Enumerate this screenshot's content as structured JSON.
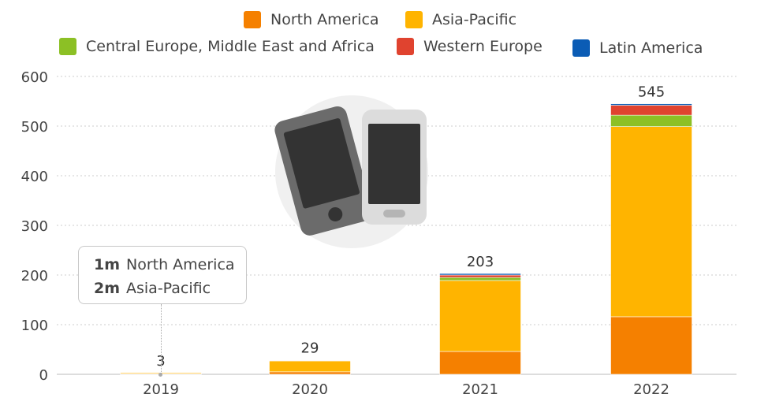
{
  "legend": [
    {
      "label": "North America",
      "color": "#f58000"
    },
    {
      "label": "Asia-Pacific",
      "color": "#ffb400"
    },
    {
      "label": "Central Europe, Middle East and Africa",
      "color": "#8cc025"
    },
    {
      "label": "Western Europe",
      "color": "#e0432f"
    },
    {
      "label": "Latin America",
      "color": "#0b5cb5"
    }
  ],
  "tooltip": {
    "rows": [
      {
        "value": "1m",
        "label": "North America"
      },
      {
        "value": "2m",
        "label": "Asia-Pacific"
      }
    ]
  },
  "illustration_icon": "smartphones-icon",
  "chart_data": {
    "type": "bar",
    "stacked": true,
    "categories": [
      "2019",
      "2020",
      "2021",
      "2022"
    ],
    "totals": [
      3,
      29,
      203,
      545
    ],
    "ylim": [
      0,
      600
    ],
    "yticks": [
      0,
      100,
      200,
      300,
      400,
      500,
      600
    ],
    "grid": true,
    "legend_position": "top",
    "series": [
      {
        "name": "North America",
        "color": "#f58000",
        "values": [
          1,
          5,
          46,
          116
        ]
      },
      {
        "name": "Asia-Pacific",
        "color": "#ffb400",
        "values": [
          2,
          22,
          143,
          383
        ]
      },
      {
        "name": "Central Europe, Middle East and Africa",
        "color": "#8cc025",
        "values": [
          0,
          1,
          6,
          23
        ]
      },
      {
        "name": "Western Europe",
        "color": "#e0432f",
        "values": [
          0,
          1,
          5,
          20
        ]
      },
      {
        "name": "Latin America",
        "color": "#0b5cb5",
        "values": [
          0,
          0,
          3,
          3
        ]
      }
    ]
  }
}
